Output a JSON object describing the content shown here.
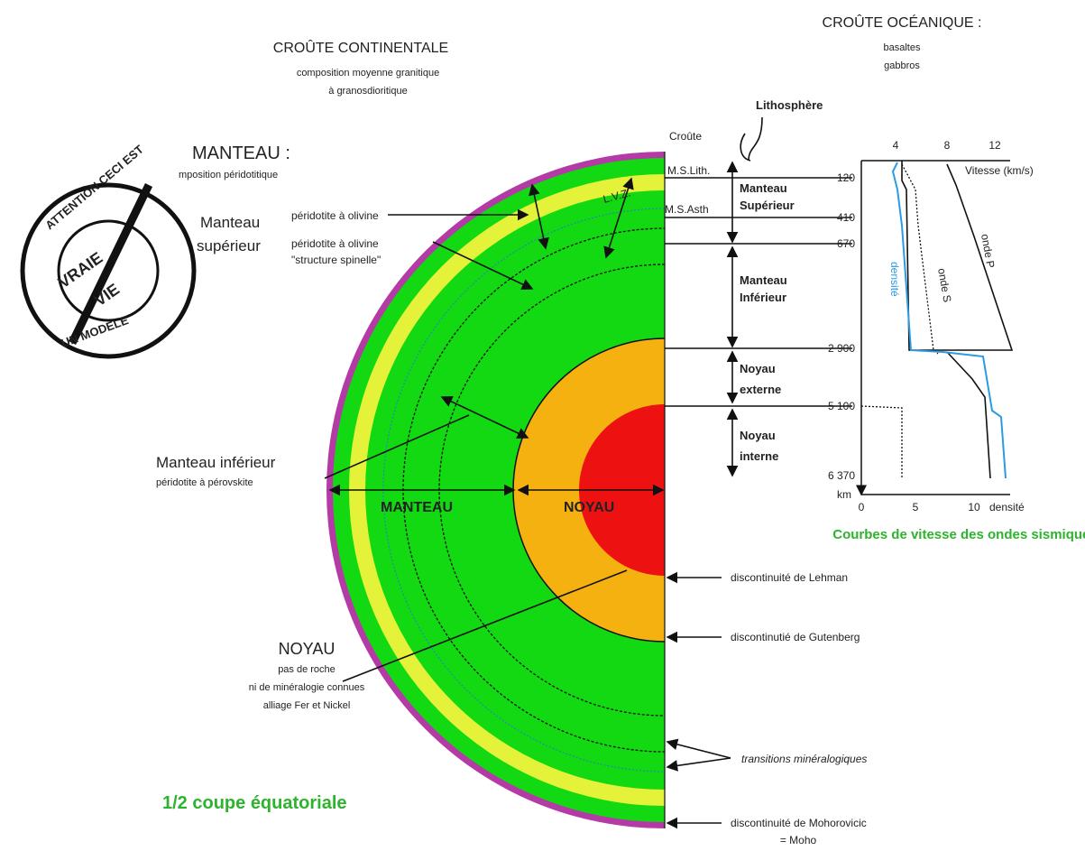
{
  "crust": {
    "continental": "CROÛTE CONTINENTALE",
    "continental_comp": [
      "composition moyenne granitique",
      "à granosdioritique"
    ],
    "oceanic": "CROÛTE OCÉANIQUE :",
    "oceanic_comp": [
      "basaltes",
      "gabbros"
    ]
  },
  "mantle": {
    "title": "MANTEAU :",
    "comp": "mposition péridotitique",
    "upper": [
      "Manteau",
      "supérieur"
    ],
    "olivine": "péridotite à olivine",
    "spinel": [
      "péridotite à olivine",
      "\"structure spinelle\""
    ],
    "lower": "Manteau inférieur",
    "lower_comp": "péridotite à pérovskite"
  },
  "core": {
    "title": "NOYAU",
    "lines": [
      "pas de roche",
      "ni de minéralogie connues",
      "alliage Fer et Nickel"
    ]
  },
  "section": {
    "manteau": "MANTEAU",
    "noyau": "NOYAU",
    "caption": "1/2 coupe équatoriale"
  },
  "layers": {
    "lithosphere": "Lithosphère",
    "croute": "Croûte",
    "ms_lith": "M.S.Lith.",
    "ms_asth": "M.S.Asth",
    "lvz": "L.V.Z.",
    "manteau_sup": [
      "Manteau",
      "Supérieur"
    ],
    "manteau_inf": [
      "Manteau",
      "Inférieur"
    ],
    "noyau_ext": [
      "Noyau",
      "externe"
    ],
    "noyau_int": [
      "Noyau",
      "interne"
    ]
  },
  "graph": {
    "title": "Courbes de vitesse des ondes sismiques",
    "speed_axis": "Vitesse (km/s)",
    "speed_ticks": [
      "4",
      "8",
      "12"
    ],
    "density_ticks": [
      "0",
      "5",
      "10"
    ],
    "density_axis": "densité",
    "depths": [
      "120",
      "410",
      "670",
      "2 900",
      "5 100",
      "6 370"
    ],
    "km": "km",
    "onde_p": "onde P",
    "onde_s": "onde S",
    "densite": "densité"
  },
  "discontinuities": {
    "lehman": "discontinuité de Lehman",
    "gutenberg": "discontinutié de Gutenberg",
    "transitions": "transitions minéralogiques",
    "moho": "discontinuité de Mohorovicic",
    "moho_short": "= Moho"
  },
  "stamp": {
    "top": "ATTENTION CECI EST",
    "vraie": "VRAIE",
    "vie": "VIE",
    "bottom": "UN MODELE"
  }
}
